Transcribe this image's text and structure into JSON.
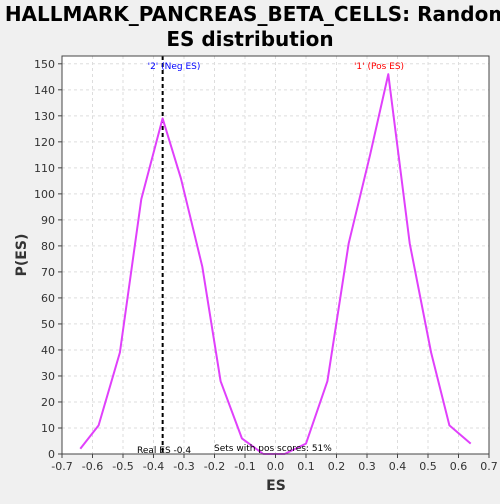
{
  "chart_data": {
    "type": "line",
    "title_line1": "HALLMARK_PANCREAS_BETA_CELLS: Random",
    "title_line2": "ES distribution",
    "xlabel": "ES",
    "ylabel": "P(ES)",
    "xlim": [
      -0.7,
      0.7
    ],
    "ylim": [
      0,
      153
    ],
    "x_ticks": [
      -0.7,
      -0.6,
      -0.5,
      -0.4,
      -0.3,
      -0.2,
      -0.1,
      0.0,
      0.1,
      0.2,
      0.3,
      0.4,
      0.5,
      0.6,
      0.7
    ],
    "x_tick_labels": [
      "-0.7",
      "-0.6",
      "-0.5",
      "-0.4",
      "-0.3",
      "-0.2",
      "-0.1",
      "0.0",
      "0.1",
      "0.2",
      "0.3",
      "0.4",
      "0.5",
      "0.6",
      "0.7"
    ],
    "y_ticks": [
      0,
      10,
      20,
      30,
      40,
      50,
      60,
      70,
      80,
      90,
      100,
      110,
      120,
      130,
      140,
      150
    ],
    "grid": true,
    "series": [
      {
        "color": "#e040fb",
        "x": [
          -0.64,
          -0.58,
          -0.51,
          -0.44,
          -0.37,
          -0.31,
          -0.24,
          -0.18,
          -0.11,
          -0.04,
          0.03,
          0.1,
          0.17,
          0.24,
          0.31,
          0.37,
          0.44,
          0.51,
          0.57,
          0.64
        ],
        "y": [
          2,
          11,
          39,
          98,
          129,
          106,
          72,
          28,
          6,
          0,
          0,
          4,
          28,
          81,
          115,
          146,
          81,
          39,
          11,
          4
        ]
      }
    ],
    "annotations": {
      "neg_label": "'2' (Neg ES)",
      "neg_label_color": "#0000ff",
      "pos_label": "'1' (Pos ES)",
      "pos_label_color": "#ff0000",
      "real_es_value": -0.37,
      "real_es_label": "Real ES -0.4",
      "pos_scores_label": "Sets with pos scores: 51%"
    }
  }
}
